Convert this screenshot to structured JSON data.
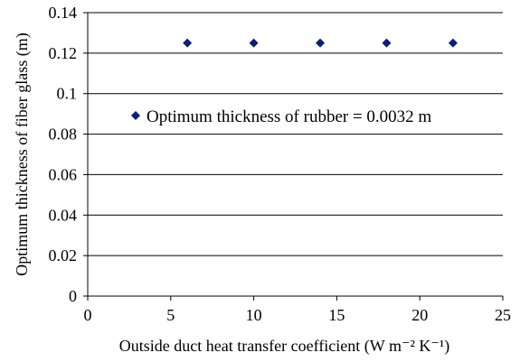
{
  "chart_data": {
    "type": "scatter",
    "title": "",
    "xlabel": "Outside duct heat transfer coefficient (W m⁻² K⁻¹)",
    "ylabel": "Optimum thickness of fiber glass (m)",
    "xlim": [
      0,
      25
    ],
    "ylim": [
      0,
      0.14
    ],
    "x_ticks": [
      "0",
      "5",
      "10",
      "15",
      "20",
      "25"
    ],
    "y_ticks": [
      "0",
      "0.02",
      "0.04",
      "0.06",
      "0.08",
      "0.1",
      "0.12",
      "0.14"
    ],
    "x_tick_values": [
      0,
      5,
      10,
      15,
      20,
      25
    ],
    "y_tick_values": [
      0,
      0.02,
      0.04,
      0.06,
      0.08,
      0.1,
      0.12,
      0.14
    ],
    "grid": "horizontal",
    "legend_position": "center-left",
    "series": [
      {
        "name": "Optimum thickness of rubber = 0.0032 m",
        "marker": "diamond",
        "color": "#0a1f7a",
        "x": [
          6,
          10,
          14,
          18,
          22
        ],
        "y": [
          0.125,
          0.125,
          0.125,
          0.125,
          0.125
        ]
      }
    ]
  }
}
